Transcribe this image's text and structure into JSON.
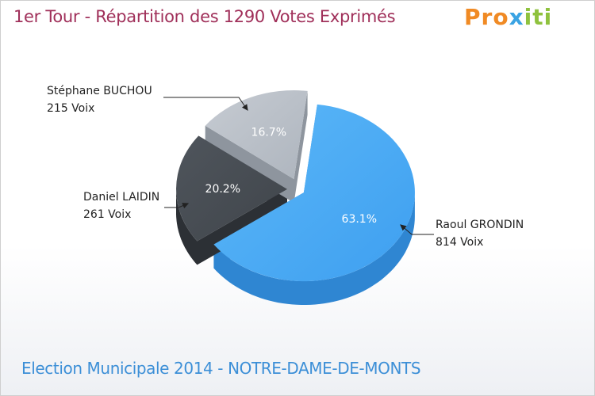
{
  "title": "1er Tour - Répartition des 1290 Votes Exprimés",
  "logo": {
    "text": "Proxiti"
  },
  "footer": "Election Municipale 2014 - NOTRE-DAME-DE-MONTS",
  "colors": {
    "grondin": "#43a8f5",
    "laidin": "#474c52",
    "buchou": "#b8bec6",
    "title": "#a0305a",
    "footer": "#3c8fd7"
  },
  "chart_data": {
    "type": "pie",
    "title": "1er Tour - Répartition des 1290 Votes Exprimés",
    "slices": [
      {
        "name": "Raoul GRONDIN",
        "votes_label": "814 Voix",
        "value": 814,
        "percent_label": "63.1%",
        "color": "#43a8f5"
      },
      {
        "name": "Daniel LAIDIN",
        "votes_label": "261 Voix",
        "value": 261,
        "percent_label": "20.2%",
        "color": "#474c52"
      },
      {
        "name": "Stéphane BUCHOU",
        "votes_label": "215 Voix",
        "value": 215,
        "percent_label": "16.7%",
        "color": "#b8bec6"
      }
    ]
  }
}
